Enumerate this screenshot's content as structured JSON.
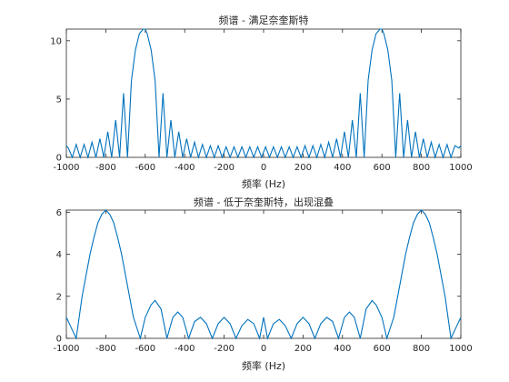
{
  "colors": {
    "series": "#0072BD",
    "axes": "#262626",
    "background": "#FFFFFF"
  },
  "chart_data": [
    {
      "type": "line",
      "title": "频谱 - 满足奈奎斯特",
      "xlabel": "频率 (Hz)",
      "ylabel": "",
      "xlim": [
        -1000,
        1000
      ],
      "ylim": [
        0,
        11
      ],
      "xticks": [
        -1000,
        -800,
        -600,
        -400,
        -200,
        0,
        200,
        400,
        600,
        800,
        1000
      ],
      "xtick_labels": [
        "-1000",
        "-800",
        "-600",
        "-400",
        "-200",
        "0",
        "200",
        "400",
        "600",
        "800",
        "1000"
      ],
      "yticks": [
        0,
        5,
        10
      ],
      "ytick_labels": [
        "0",
        "5",
        "10"
      ],
      "grid": false,
      "legend": "none",
      "series": [
        {
          "x": [
            -1000,
            -990,
            -970,
            -950,
            -930,
            -910,
            -890,
            -870,
            -850,
            -830,
            -810,
            -790,
            -770,
            -750,
            -730,
            -710,
            -690,
            -670,
            -650,
            -630,
            -610,
            -600,
            -590,
            -570,
            -550,
            -530,
            -510,
            -490,
            -470,
            -450,
            -430,
            -410,
            -390,
            -370,
            -350,
            -330,
            -310,
            -290,
            -270,
            -250,
            -230,
            -210,
            -190,
            -170,
            -150,
            -130,
            -110,
            -90,
            -70,
            -50,
            -30,
            -10,
            10,
            30,
            50,
            70,
            90,
            110,
            130,
            150,
            170,
            190,
            210,
            230,
            250,
            270,
            290,
            310,
            330,
            350,
            370,
            390,
            410,
            430,
            450,
            470,
            490,
            510,
            530,
            550,
            570,
            590,
            600,
            610,
            630,
            650,
            670,
            690,
            710,
            730,
            750,
            770,
            790,
            810,
            830,
            850,
            870,
            890,
            910,
            930,
            950,
            970,
            990,
            1000
          ],
          "y": [
            1.0,
            0.8,
            0.0,
            1.1,
            0.0,
            1.1,
            0.0,
            1.3,
            0.0,
            1.6,
            0.0,
            2.2,
            0.0,
            3.2,
            0.0,
            5.5,
            0.0,
            6.6,
            9.2,
            10.6,
            11.0,
            11.0,
            10.6,
            9.2,
            6.6,
            0.0,
            5.5,
            0.0,
            3.2,
            0.0,
            2.2,
            0.0,
            1.6,
            0.0,
            1.3,
            0.0,
            1.1,
            0.0,
            1.0,
            0.0,
            1.0,
            0.0,
            0.9,
            0.0,
            0.9,
            0.0,
            0.9,
            0.0,
            0.9,
            0.0,
            0.9,
            0.0,
            0.9,
            0.0,
            0.9,
            0.0,
            0.9,
            0.0,
            0.9,
            0.0,
            0.9,
            0.0,
            1.0,
            0.0,
            1.0,
            0.0,
            1.1,
            0.0,
            1.3,
            0.0,
            1.6,
            0.0,
            2.2,
            0.0,
            3.2,
            0.0,
            5.5,
            0.0,
            6.6,
            9.2,
            10.6,
            11.0,
            11.0,
            10.6,
            9.2,
            6.6,
            0.0,
            5.5,
            0.0,
            3.2,
            0.0,
            2.2,
            0.0,
            1.6,
            0.0,
            1.3,
            0.0,
            1.1,
            0.0,
            1.1,
            0.0,
            1.0,
            0.8,
            1.0
          ]
        }
      ]
    },
    {
      "type": "line",
      "title": "频谱 - 低于奈奎斯特，出现混叠",
      "xlabel": "频率 (Hz)",
      "ylabel": "",
      "xlim": [
        -1000,
        1000
      ],
      "ylim": [
        0,
        6.1
      ],
      "xticks": [
        -1000,
        -800,
        -600,
        -400,
        -200,
        0,
        200,
        400,
        600,
        800,
        1000
      ],
      "xtick_labels": [
        "-1000",
        "-800",
        "-600",
        "-400",
        "-200",
        "0",
        "200",
        "400",
        "600",
        "800",
        "1000"
      ],
      "yticks": [
        0,
        2,
        4,
        6
      ],
      "ytick_labels": [
        "0",
        "2",
        "4",
        "6"
      ],
      "grid": false,
      "legend": "none",
      "series": [
        {
          "x": [
            -1000,
            -985,
            -950,
            -920,
            -900,
            -880,
            -860,
            -840,
            -820,
            -800,
            -780,
            -760,
            -740,
            -720,
            -700,
            -680,
            -660,
            -625,
            -600,
            -570,
            -550,
            -520,
            -490,
            -460,
            -435,
            -410,
            -380,
            -350,
            -320,
            -290,
            -260,
            -230,
            -200,
            -170,
            -140,
            -110,
            -80,
            -50,
            -20,
            0,
            20,
            50,
            80,
            110,
            140,
            170,
            200,
            230,
            260,
            290,
            320,
            350,
            380,
            410,
            435,
            460,
            490,
            520,
            550,
            570,
            600,
            625,
            660,
            680,
            700,
            720,
            740,
            760,
            780,
            800,
            820,
            840,
            860,
            880,
            900,
            920,
            950,
            985,
            1000
          ],
          "y": [
            1.0,
            0.7,
            0.0,
            2.0,
            3.0,
            4.0,
            4.8,
            5.5,
            5.9,
            6.1,
            5.9,
            5.5,
            4.8,
            4.0,
            3.0,
            2.0,
            1.0,
            0.0,
            1.0,
            1.6,
            1.8,
            1.4,
            0.0,
            1.0,
            1.25,
            1.0,
            0.0,
            0.8,
            1.0,
            0.7,
            0.0,
            0.7,
            1.0,
            0.7,
            0.0,
            0.6,
            0.9,
            0.7,
            0.0,
            1.0,
            0.0,
            0.7,
            0.9,
            0.6,
            0.0,
            0.7,
            1.0,
            0.7,
            0.0,
            0.7,
            1.0,
            0.8,
            0.0,
            1.0,
            1.25,
            1.0,
            0.0,
            1.4,
            1.8,
            1.6,
            1.0,
            0.0,
            1.0,
            2.0,
            3.0,
            4.0,
            4.8,
            5.5,
            5.9,
            6.1,
            5.9,
            5.5,
            4.8,
            4.0,
            3.0,
            2.0,
            0.0,
            0.7,
            1.0
          ]
        }
      ]
    }
  ]
}
